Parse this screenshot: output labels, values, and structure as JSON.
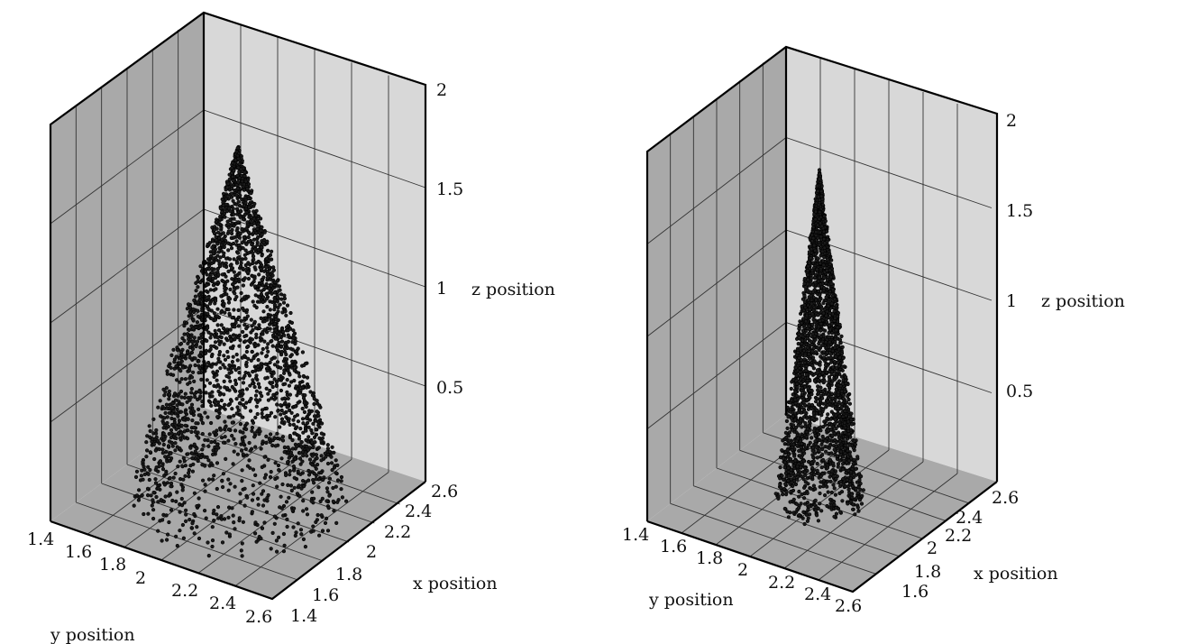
{
  "chart_data": [
    {
      "type": "scatter3d",
      "description_in_image": "cone-shaped point cloud, wide base",
      "x_ticks": [
        "1.4",
        "1.6",
        "1.8",
        "2",
        "2.2",
        "2.4",
        "2.6"
      ],
      "y_ticks": [
        "1.4",
        "1.6",
        "1.8",
        "2",
        "2.2",
        "2.4",
        "2.6"
      ],
      "z_ticks": [
        "0.5",
        "1",
        "1.5",
        "2"
      ],
      "xlabel": "x position",
      "ylabel": "y position",
      "zlabel": "z position",
      "xlim": [
        1.4,
        2.6
      ],
      "ylim": [
        1.4,
        2.6
      ],
      "zlim": [
        0,
        2
      ],
      "grid": true,
      "cone": {
        "apex": [
          2.0,
          2.0,
          1.8
        ],
        "base_center": [
          2.0,
          2.0,
          0.0
        ],
        "base_radius": 0.5
      }
    },
    {
      "type": "scatter3d",
      "description_in_image": "narrow cone-shaped point cloud",
      "x_ticks": [
        "1.6",
        "1.8",
        "2",
        "2.2",
        "2.4",
        "2.6"
      ],
      "y_ticks": [
        "1.4",
        "1.6",
        "1.8",
        "2",
        "2.2",
        "2.4",
        "2.6"
      ],
      "z_ticks": [
        "0.5",
        "1",
        "1.5",
        "2"
      ],
      "xlabel": "x position",
      "ylabel": "y position",
      "zlabel": "z position",
      "xlim": [
        1.4,
        2.6
      ],
      "ylim": [
        1.4,
        2.6
      ],
      "zlim": [
        0,
        2
      ],
      "grid": true,
      "cone": {
        "apex": [
          2.0,
          2.0,
          1.8
        ],
        "base_center": [
          2.0,
          2.0,
          0.0
        ],
        "base_radius": 0.22
      }
    }
  ]
}
